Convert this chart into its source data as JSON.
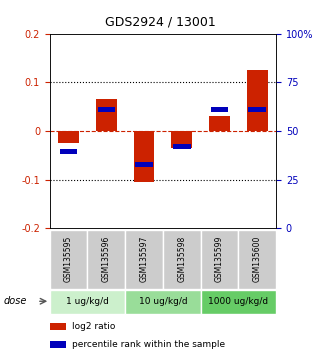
{
  "title": "GDS2924 / 13001",
  "samples": [
    "GSM135595",
    "GSM135596",
    "GSM135597",
    "GSM135598",
    "GSM135599",
    "GSM135600"
  ],
  "doses": [
    {
      "label": "1 ug/kg/d",
      "samples": [
        0,
        1
      ],
      "color": "#ccf0cc"
    },
    {
      "label": "10 ug/kg/d",
      "samples": [
        2,
        3
      ],
      "color": "#99dd99"
    },
    {
      "label": "1000 ug/kg/d",
      "samples": [
        4,
        5
      ],
      "color": "#66cc66"
    }
  ],
  "log2_ratio": [
    -0.025,
    0.065,
    -0.105,
    -0.035,
    0.03,
    0.125
  ],
  "blue_bottom": [
    -0.048,
    0.038,
    -0.075,
    -0.038,
    0.038,
    0.038
  ],
  "blue_height": [
    0.012,
    0.012,
    0.012,
    0.012,
    0.012,
    0.012
  ],
  "bar_width": 0.55,
  "ylim": [
    -0.2,
    0.2
  ],
  "y2lim": [
    0,
    100
  ],
  "yticks": [
    -0.2,
    -0.1,
    0.0,
    0.1,
    0.2
  ],
  "y2ticks": [
    0,
    25,
    50,
    75,
    100
  ],
  "y2ticklabels": [
    "0",
    "25",
    "50",
    "75",
    "100%"
  ],
  "red_color": "#cc2200",
  "blue_color": "#0000bb",
  "bg_color": "#ffffff",
  "sample_bg": "#cccccc",
  "title_fontsize": 9
}
